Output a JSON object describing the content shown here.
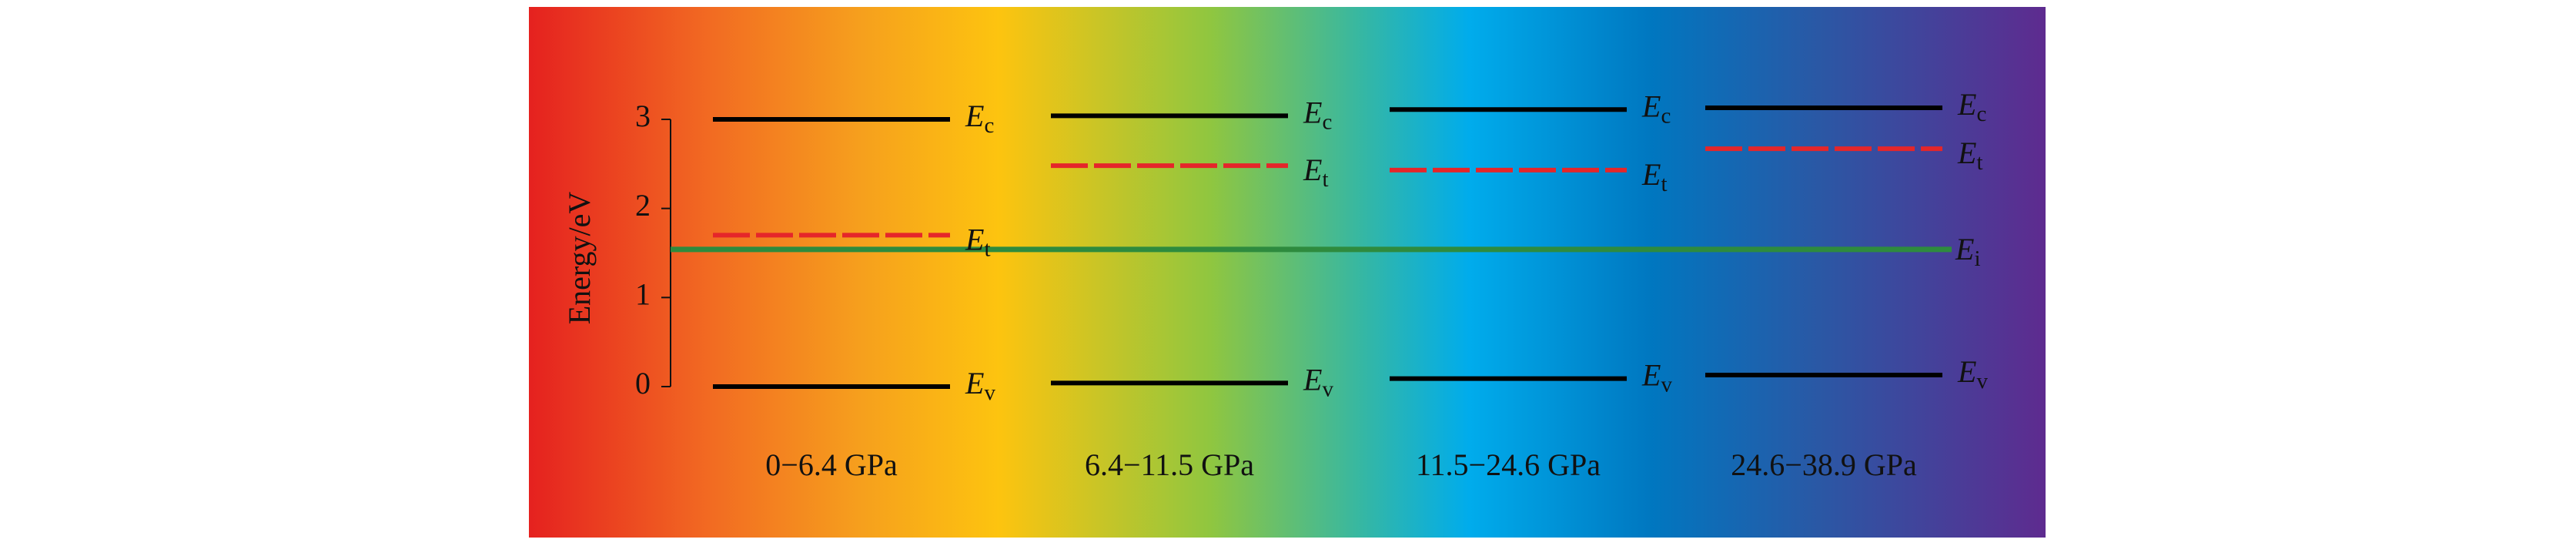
{
  "chart_data": {
    "type": "energy-level",
    "y_label": "Energy/eV",
    "categories": [
      "0−6.4 GPa",
      "6.4−11.5 GPa",
      "11.5−24.6 GPa",
      "24.6−38.9 GPa"
    ],
    "ylim": [
      0,
      3
    ],
    "yticks": [
      0,
      1,
      2,
      3
    ],
    "levels": [
      {
        "symbol": "E",
        "subscript": "c",
        "color": "#000000",
        "dashed": false,
        "values": [
          3.0,
          3.04,
          3.11,
          3.13
        ]
      },
      {
        "symbol": "E",
        "subscript": "t",
        "color": "#e5262a",
        "dashed": true,
        "values": [
          1.7,
          2.48,
          2.43,
          2.67
        ]
      },
      {
        "symbol": "E",
        "subscript": "v",
        "color": "#000000",
        "dashed": false,
        "values": [
          0.0,
          0.04,
          0.09,
          0.13
        ]
      }
    ],
    "reference_level": {
      "symbol": "E",
      "subscript": "i",
      "color": "#2e8b3e",
      "value": 1.54
    }
  }
}
